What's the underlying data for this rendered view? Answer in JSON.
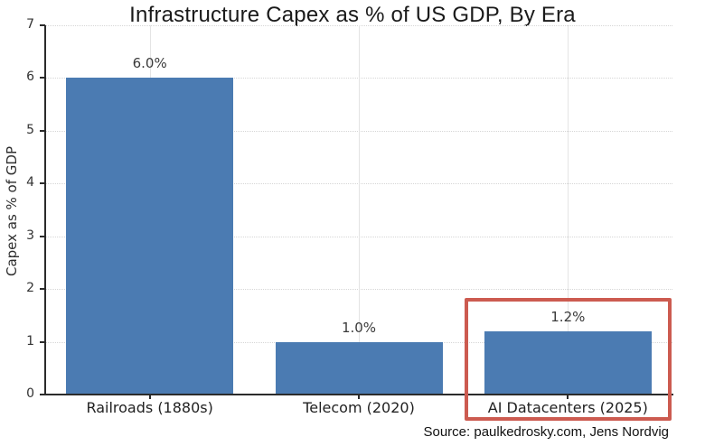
{
  "source": {
    "text": "Source: paulkedrosky.com, Jens Nordvig"
  },
  "chart_data": {
    "type": "bar",
    "title": "Infrastructure Capex as % of US GDP, By Era",
    "xlabel": "",
    "ylabel": "Capex as % of GDP",
    "categories": [
      "Railroads (1880s)",
      "Telecom (2020)",
      "AI Datacenters (2025)"
    ],
    "values": [
      6.0,
      1.0,
      1.2
    ],
    "value_labels": [
      "6.0%",
      "1.0%",
      "1.2%"
    ],
    "ylim": [
      0,
      7
    ],
    "yticks": [
      0,
      1,
      2,
      3,
      4,
      5,
      6,
      7
    ],
    "grid": true,
    "legend": "none",
    "bar_color": "#4b7bb2",
    "highlight": {
      "category_index": 2,
      "box_color": "#cc5b50",
      "meaning": "highlighted-bar"
    }
  }
}
